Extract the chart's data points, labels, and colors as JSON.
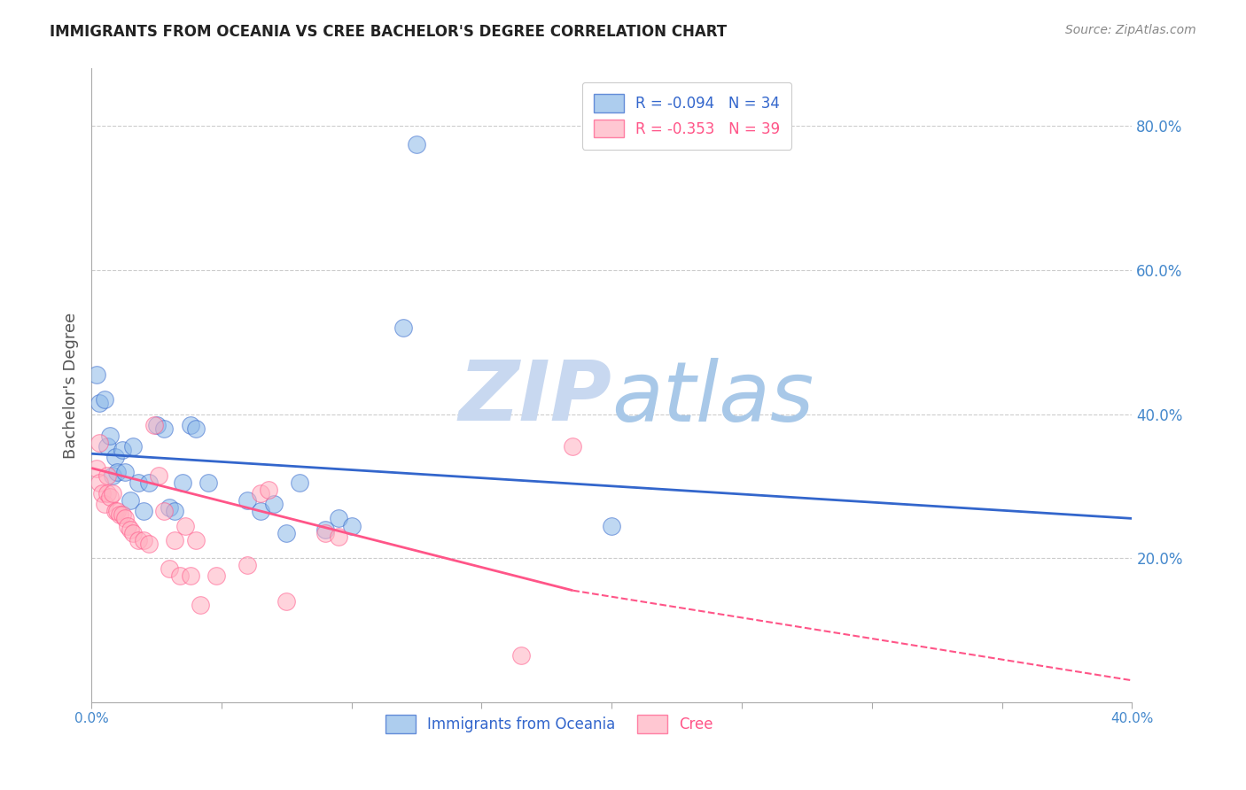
{
  "title": "IMMIGRANTS FROM OCEANIA VS CREE BACHELOR'S DEGREE CORRELATION CHART",
  "source": "Source: ZipAtlas.com",
  "xlabel": "",
  "ylabel": "Bachelor's Degree",
  "legend_label1": "Immigrants from Oceania",
  "legend_label2": "Cree",
  "R1": -0.094,
  "N1": 34,
  "R2": -0.353,
  "N2": 39,
  "xlim": [
    0.0,
    0.4
  ],
  "ylim": [
    0.0,
    0.88
  ],
  "xticks": [
    0.0,
    0.05,
    0.1,
    0.15,
    0.2,
    0.25,
    0.3,
    0.35,
    0.4
  ],
  "xtick_labels": [
    "0.0%",
    "",
    "",
    "",
    "",
    "",
    "",
    "",
    "40.0%"
  ],
  "yticks_right": [
    0.2,
    0.4,
    0.6,
    0.8
  ],
  "ytick_labels_right": [
    "20.0%",
    "40.0%",
    "60.0%",
    "80.0%"
  ],
  "color_blue": "#8BB8E8",
  "color_pink": "#FFB0C0",
  "line_color_blue": "#3366CC",
  "line_color_pink": "#FF5588",
  "watermark_color": "#DDEEFF",
  "title_color": "#222222",
  "axis_label_color": "#555555",
  "tick_label_color": "#4488CC",
  "blue_x": [
    0.002,
    0.003,
    0.005,
    0.006,
    0.007,
    0.008,
    0.009,
    0.01,
    0.012,
    0.013,
    0.015,
    0.016,
    0.018,
    0.02,
    0.022,
    0.025,
    0.028,
    0.03,
    0.032,
    0.035,
    0.038,
    0.04,
    0.045,
    0.06,
    0.065,
    0.07,
    0.075,
    0.08,
    0.09,
    0.095,
    0.1,
    0.12,
    0.125,
    0.2
  ],
  "blue_y": [
    0.455,
    0.415,
    0.42,
    0.355,
    0.37,
    0.315,
    0.34,
    0.32,
    0.35,
    0.32,
    0.28,
    0.355,
    0.305,
    0.265,
    0.305,
    0.385,
    0.38,
    0.27,
    0.265,
    0.305,
    0.385,
    0.38,
    0.305,
    0.28,
    0.265,
    0.275,
    0.235,
    0.305,
    0.24,
    0.255,
    0.245,
    0.52,
    0.775,
    0.245
  ],
  "pink_x": [
    0.002,
    0.003,
    0.003,
    0.004,
    0.005,
    0.006,
    0.006,
    0.007,
    0.008,
    0.009,
    0.01,
    0.011,
    0.012,
    0.013,
    0.014,
    0.015,
    0.016,
    0.018,
    0.02,
    0.022,
    0.024,
    0.026,
    0.028,
    0.03,
    0.032,
    0.034,
    0.036,
    0.038,
    0.04,
    0.042,
    0.048,
    0.06,
    0.065,
    0.068,
    0.075,
    0.09,
    0.095,
    0.165,
    0.185
  ],
  "pink_y": [
    0.325,
    0.305,
    0.36,
    0.29,
    0.275,
    0.315,
    0.29,
    0.285,
    0.29,
    0.265,
    0.265,
    0.26,
    0.26,
    0.255,
    0.245,
    0.24,
    0.235,
    0.225,
    0.225,
    0.22,
    0.385,
    0.315,
    0.265,
    0.185,
    0.225,
    0.175,
    0.245,
    0.175,
    0.225,
    0.135,
    0.175,
    0.19,
    0.29,
    0.295,
    0.14,
    0.235,
    0.23,
    0.065,
    0.355
  ],
  "line1_x0": 0.0,
  "line1_x1": 0.4,
  "line1_y0": 0.345,
  "line1_y1": 0.255,
  "line2_x0": 0.0,
  "line2_x1": 0.185,
  "line2_y0": 0.325,
  "line2_y1": 0.155,
  "line2_dash_x0": 0.185,
  "line2_dash_x1": 0.4,
  "line2_dash_y0": 0.155,
  "line2_dash_y1": 0.03
}
